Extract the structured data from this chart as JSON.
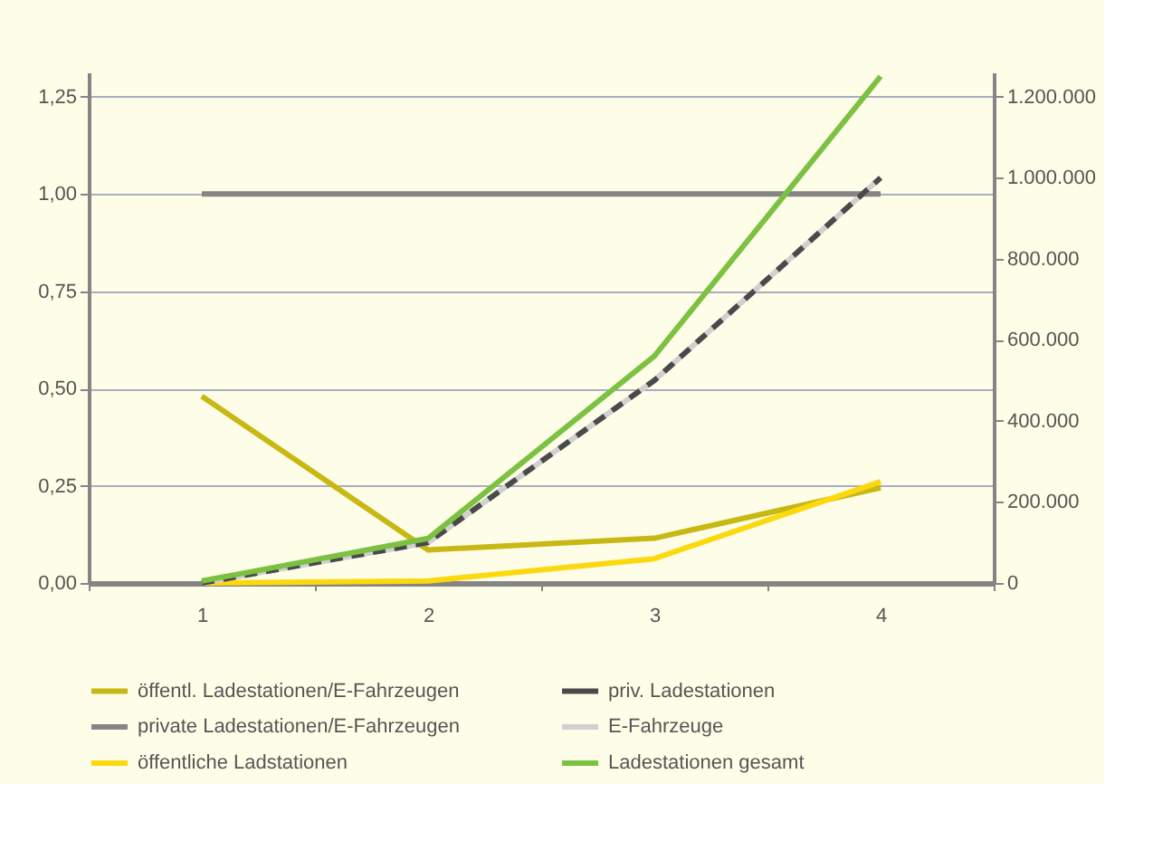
{
  "chart_data": {
    "type": "line",
    "categories": [
      "1",
      "2",
      "3",
      "4"
    ],
    "series": [
      {
        "name": "öffentl. Ladestationen/E-Fahrzeugen",
        "color": "#c8b814",
        "values": [
          0.48,
          0.085,
          0.115,
          0.245
        ]
      },
      {
        "name": "private Ladestationen/E-Fahrzeugen",
        "color": "#858585",
        "values": [
          1,
          1,
          1,
          1
        ]
      },
      {
        "name": "öffentliche Ladstationen",
        "color": "#fcd80f",
        "axis": "y2",
        "values": [
          0,
          5000,
          60000,
          250000
        ]
      },
      {
        "name": "E-Fahrzeuge",
        "color": "#d0d0d0",
        "axis": "y2",
        "values": [
          0,
          100000,
          500000,
          1000000
        ]
      },
      {
        "name": "priv. Ladestationen",
        "color": "#4a4a4a",
        "axis": "y2",
        "line_style": "dashed",
        "values": [
          0,
          100000,
          500000,
          1000000
        ]
      },
      {
        "name": "Ladestationen gesamt",
        "color": "#7cc142",
        "axis": "y2",
        "values": [
          5000,
          110000,
          560000,
          1250000
        ]
      }
    ],
    "ylim": [
      0,
      1.3125
    ],
    "yticks": [
      {
        "value": 0,
        "label": "0,00"
      },
      {
        "value": 0.25,
        "label": "0,25"
      },
      {
        "value": 0.5,
        "label": "0,50"
      },
      {
        "value": 0.75,
        "label": "0,75"
      },
      {
        "value": 1,
        "label": "1,00"
      },
      {
        "value": 1.25,
        "label": "1,25"
      }
    ],
    "y2lim": [
      0,
      1260000
    ],
    "y2ticks": [
      0,
      {
        "value": 200000,
        "label": "200.000"
      },
      {
        "value": 400000,
        "label": "400.000"
      },
      {
        "value": 600000,
        "label": "600.000"
      },
      {
        "value": 800000,
        "label": "800.000"
      },
      {
        "value": 1000000,
        "label": "1.000.000"
      },
      {
        "value": 1200000,
        "label": "1.200.000"
      }
    ],
    "grid": "y",
    "legend": "bottom",
    "line_style": "solid",
    "marker": "none"
  }
}
